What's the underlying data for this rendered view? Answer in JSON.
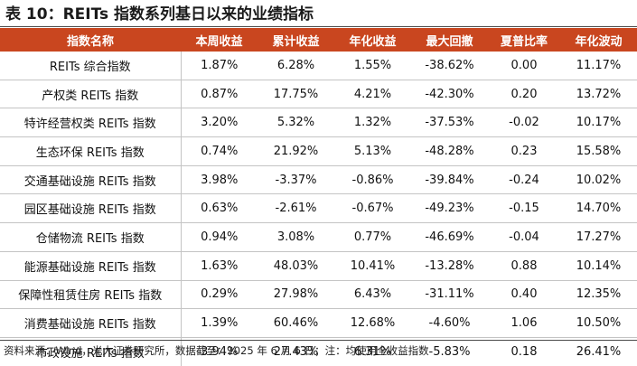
{
  "title": "表 10：REITs 指数系列基日以来的业绩指标",
  "table": {
    "headers": [
      "指数名称",
      "本周收益",
      "累计收益",
      "年化收益",
      "最大回撤",
      "夏普比率",
      "年化波动"
    ],
    "rows": [
      [
        "REITs 综合指数",
        "1.87%",
        "6.28%",
        "1.55%",
        "-38.62%",
        "0.00",
        "11.17%"
      ],
      [
        "产权类 REITs 指数",
        "0.87%",
        "17.75%",
        "4.21%",
        "-42.30%",
        "0.20",
        "13.72%"
      ],
      [
        "特许经营权类 REITs 指数",
        "3.20%",
        "5.32%",
        "1.32%",
        "-37.53%",
        "-0.02",
        "10.17%"
      ],
      [
        "生态环保 REITs 指数",
        "0.74%",
        "21.92%",
        "5.13%",
        "-48.28%",
        "0.23",
        "15.58%"
      ],
      [
        "交通基础设施 REITs 指数",
        "3.98%",
        "-3.37%",
        "-0.86%",
        "-39.84%",
        "-0.24",
        "10.02%"
      ],
      [
        "园区基础设施 REITs 指数",
        "0.63%",
        "-2.61%",
        "-0.67%",
        "-49.23%",
        "-0.15",
        "14.70%"
      ],
      [
        "仓储物流 REITs 指数",
        "0.94%",
        "3.08%",
        "0.77%",
        "-46.69%",
        "-0.04",
        "17.27%"
      ],
      [
        "能源基础设施 REITs 指数",
        "1.63%",
        "48.03%",
        "10.41%",
        "-13.28%",
        "0.88",
        "10.14%"
      ],
      [
        "保障性租赁住房 REITs 指数",
        "0.29%",
        "27.98%",
        "6.43%",
        "-31.11%",
        "0.40",
        "12.35%"
      ],
      [
        "消费基础设施 REITs 指数",
        "1.39%",
        "60.46%",
        "12.68%",
        "-4.60%",
        "1.06",
        "10.50%"
      ],
      [
        "市政设施 REITs 指数",
        "3.94%",
        "27.43%",
        "6.31%",
        "-5.83%",
        "0.18",
        "26.41%"
      ]
    ]
  },
  "footnote": "资料来源：Wind，光大证券研究所，数据截至：2025 年 6 月 6 日；注：均使用全收益指数",
  "colors": {
    "header_bg": "#c9461f",
    "header_text": "#ffffff",
    "row_divider": "#c4c4c4"
  }
}
